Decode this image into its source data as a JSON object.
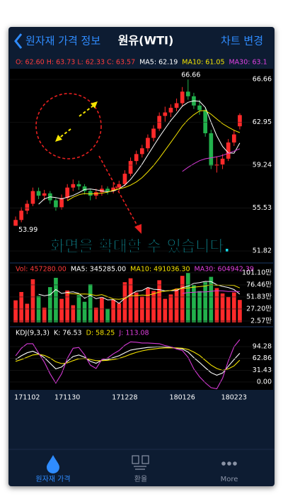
{
  "header": {
    "back": "원자재 가격 정보",
    "title": "원유(WTI)",
    "action": "차트 변경"
  },
  "info": [
    {
      "text": "O: 62.60 H: 63.73 L: 62.33 C: 63.57",
      "color": "#ff3b3b"
    },
    {
      "text": "MA5: 62.19",
      "color": "#ffffff"
    },
    {
      "text": "MA10: 61.05",
      "color": "#f5e400"
    },
    {
      "text": "MA30: 63.1",
      "color": "#e040e0"
    }
  ],
  "chart_data": {
    "type": "candlestick",
    "categories": [
      null,
      null,
      "171102",
      null,
      null,
      null,
      null,
      null,
      null,
      "171130",
      null,
      null,
      null,
      null,
      null,
      null,
      null,
      null,
      null,
      "171228",
      null,
      null,
      null,
      null,
      null,
      null,
      null,
      null,
      null,
      "180126",
      null,
      null,
      null,
      null,
      null,
      null,
      null,
      null,
      "180223",
      null
    ],
    "candles": [
      [
        54.0,
        54.8,
        53.99,
        54.5
      ],
      [
        54.5,
        55.6,
        54.3,
        55.3
      ],
      [
        55.3,
        56.2,
        55.0,
        55.9
      ],
      [
        55.9,
        57.3,
        55.7,
        57.0
      ],
      [
        57.0,
        57.3,
        56.3,
        56.6
      ],
      [
        56.6,
        57.1,
        56.2,
        56.8
      ],
      [
        56.8,
        57.0,
        55.9,
        56.2
      ],
      [
        56.2,
        56.4,
        55.3,
        55.6
      ],
      [
        55.6,
        56.7,
        55.4,
        56.4
      ],
      [
        56.4,
        57.6,
        56.2,
        57.3
      ],
      [
        57.3,
        58.0,
        57.0,
        57.6
      ],
      [
        57.6,
        57.9,
        57.1,
        57.4
      ],
      [
        57.4,
        57.6,
        56.7,
        57.0
      ],
      [
        57.0,
        57.2,
        56.2,
        56.6
      ],
      [
        56.6,
        57.2,
        56.3,
        56.9
      ],
      [
        56.9,
        57.5,
        56.6,
        57.2
      ],
      [
        57.2,
        57.4,
        56.7,
        57.0
      ],
      [
        57.0,
        57.7,
        56.8,
        57.3
      ],
      [
        57.3,
        57.9,
        57.0,
        57.6
      ],
      [
        57.6,
        58.8,
        57.4,
        58.5
      ],
      [
        58.5,
        59.9,
        58.3,
        59.6
      ],
      [
        59.6,
        60.5,
        59.3,
        60.2
      ],
      [
        60.2,
        61.0,
        59.9,
        60.7
      ],
      [
        60.7,
        61.9,
        60.4,
        61.6
      ],
      [
        61.6,
        62.7,
        61.3,
        62.4
      ],
      [
        62.4,
        63.8,
        62.2,
        63.5
      ],
      [
        63.5,
        64.3,
        63.0,
        63.8
      ],
      [
        63.8,
        64.5,
        63.4,
        64.2
      ],
      [
        64.2,
        65.0,
        63.9,
        64.6
      ],
      [
        64.6,
        66.0,
        64.3,
        65.6
      ],
      [
        65.6,
        66.66,
        64.9,
        65.2
      ],
      [
        65.2,
        65.5,
        64.1,
        64.4
      ],
      [
        64.4,
        64.9,
        63.6,
        64.0
      ],
      [
        64.0,
        64.2,
        61.7,
        62.0
      ],
      [
        62.0,
        62.3,
        58.9,
        59.2
      ],
      [
        59.2,
        60.0,
        58.6,
        59.3
      ],
      [
        59.3,
        60.2,
        58.9,
        59.8
      ],
      [
        59.8,
        61.5,
        59.6,
        61.2
      ],
      [
        61.2,
        62.3,
        60.9,
        61.9
      ],
      [
        62.6,
        63.73,
        62.33,
        63.57
      ]
    ],
    "up_color": "#ff2a2a",
    "down_color": "#22b14c",
    "ylim": [
      50.84,
      67.58
    ],
    "yticks": [
      66.66,
      62.95,
      59.24,
      55.53,
      51.82
    ],
    "annotations": [
      {
        "text": "66.66",
        "value": 66.66
      },
      {
        "text": "53.99",
        "value": 53.99
      }
    ],
    "ma": [
      {
        "period": 5,
        "color": "#ffffff"
      },
      {
        "period": 10,
        "color": "#f5e400"
      },
      {
        "period": 30,
        "color": "#d63ad6"
      }
    ],
    "volume": {
      "legend": [
        {
          "text": "Vol: 457280.00",
          "color": "#ff3b3b"
        },
        {
          "text": "MA5: 345285.00",
          "color": "#ffffff"
        },
        {
          "text": "MA10: 491036.30",
          "color": "#f5e400"
        },
        {
          "text": "MA30: 604942.39",
          "color": "#e040e0"
        }
      ],
      "values": [
        450000,
        620000,
        380000,
        880000,
        540000,
        300000,
        720000,
        910000,
        480000,
        650000,
        350000,
        560000,
        420000,
        780000,
        300000,
        510000,
        280000,
        460000,
        390000,
        820000,
        900000,
        610000,
        530000,
        700000,
        640000,
        860000,
        480000,
        570000,
        690000,
        950000,
        1011000,
        760000,
        640000,
        820000,
        930000,
        700000,
        590000,
        520000,
        610000,
        457280
      ],
      "ylim": [
        -76000,
        1199000
      ],
      "yticks": [
        {
          "value": 1011000,
          "label": "101.10만"
        },
        {
          "value": 764600,
          "label": "76.46만"
        },
        {
          "value": 518300,
          "label": "51.83만"
        },
        {
          "value": 272000,
          "label": "27.20만"
        },
        {
          "value": 25700,
          "label": "2.57만"
        }
      ]
    },
    "kdj": {
      "legend": [
        {
          "text": "KDJ(9,3,3)",
          "color": "#ffffff"
        },
        {
          "text": "K: 76.53",
          "color": "#ffffff"
        },
        {
          "text": "D: 58.25",
          "color": "#f5e400"
        },
        {
          "text": "J: 113.08",
          "color": "#e040e0"
        }
      ],
      "series": [
        {
          "name": "K",
          "color": "#ffffff",
          "values": [
            60,
            70,
            78,
            82,
            75,
            65,
            50,
            35,
            40,
            55,
            68,
            72,
            66,
            55,
            50,
            58,
            60,
            65,
            70,
            78,
            85,
            88,
            90,
            92,
            93,
            94,
            93,
            92,
            90,
            88,
            80,
            65,
            52,
            38,
            25,
            18,
            24,
            42,
            60,
            76.53
          ]
        },
        {
          "name": "D",
          "color": "#f5e400",
          "values": [
            55,
            60,
            66,
            72,
            74,
            71,
            64,
            54,
            49,
            51,
            57,
            62,
            63,
            60,
            57,
            57,
            58,
            60,
            63,
            68,
            74,
            79,
            83,
            86,
            88,
            90,
            91,
            91,
            91,
            90,
            87,
            80,
            71,
            58,
            45,
            36,
            31,
            35,
            43,
            58.25
          ]
        },
        {
          "name": "J",
          "color": "#d63ad6",
          "values": [
            70,
            90,
            102,
            102,
            77,
            53,
            22,
            -3,
            22,
            63,
            90,
            92,
            72,
            45,
            36,
            60,
            64,
            75,
            84,
            98,
            107,
            106,
            104,
            104,
            103,
            102,
            97,
            94,
            88,
            84,
            66,
            35,
            14,
            -2,
            -15,
            -18,
            10,
            56,
            94,
            113.08
          ]
        }
      ],
      "ylim": [
        -20.8,
        145.3
      ],
      "yticks": [
        94.28,
        62.86,
        31.43,
        {
          "value": 0,
          "label": "0.00"
        }
      ]
    }
  },
  "overlay_text": "화면을 확대할 수 있습니다.",
  "tabs": [
    "원자재 가격",
    "환율",
    "More"
  ]
}
